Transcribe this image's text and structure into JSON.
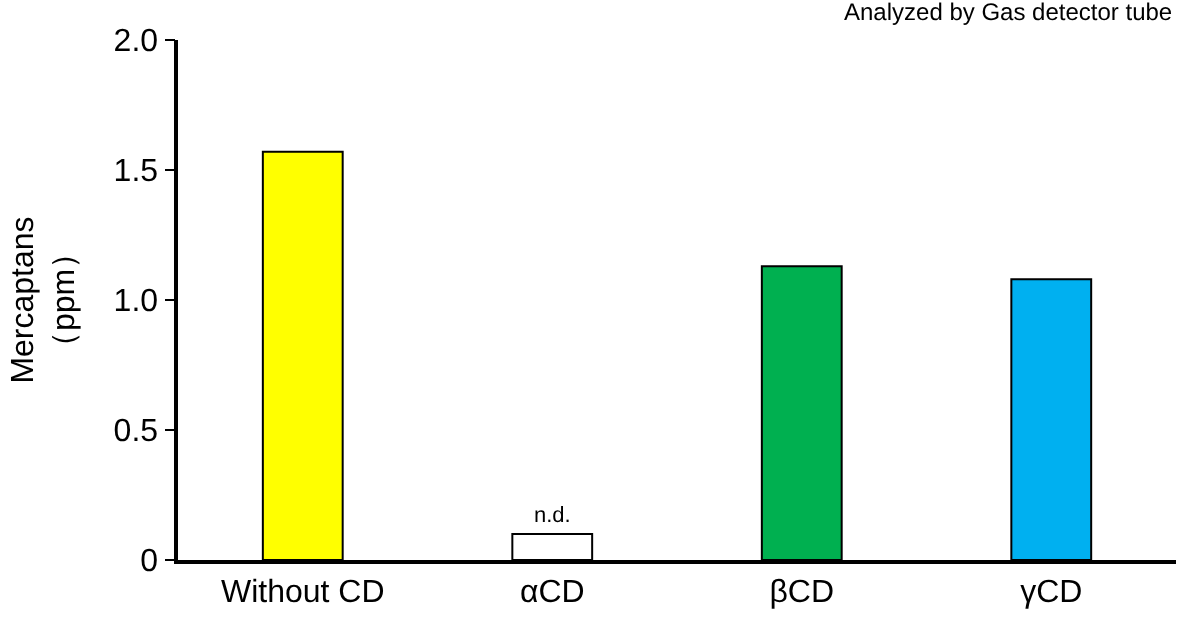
{
  "chart_data": {
    "type": "bar",
    "ylabel": "Mercaptans\n（ppm）",
    "categories": [
      "Without CD",
      "αCD",
      "βCD",
      "γCD"
    ],
    "values": [
      1.57,
      0.1,
      1.13,
      1.08
    ],
    "colors": [
      "#ffff00",
      "#ffffff",
      "#00b050",
      "#00b0f0"
    ],
    "value_labels": [
      null,
      "n.d.",
      null,
      null
    ],
    "ylim": [
      0,
      2.0
    ],
    "yticks": [
      {
        "value": 0,
        "label": "0"
      },
      {
        "value": 0.5,
        "label": "0.5"
      },
      {
        "value": 1.0,
        "label": "1.0"
      },
      {
        "value": 1.5,
        "label": "1.5"
      },
      {
        "value": 2.0,
        "label": "2.0"
      }
    ],
    "legend": false,
    "annotations": [
      "Analyzed by Gas detector tube"
    ]
  }
}
